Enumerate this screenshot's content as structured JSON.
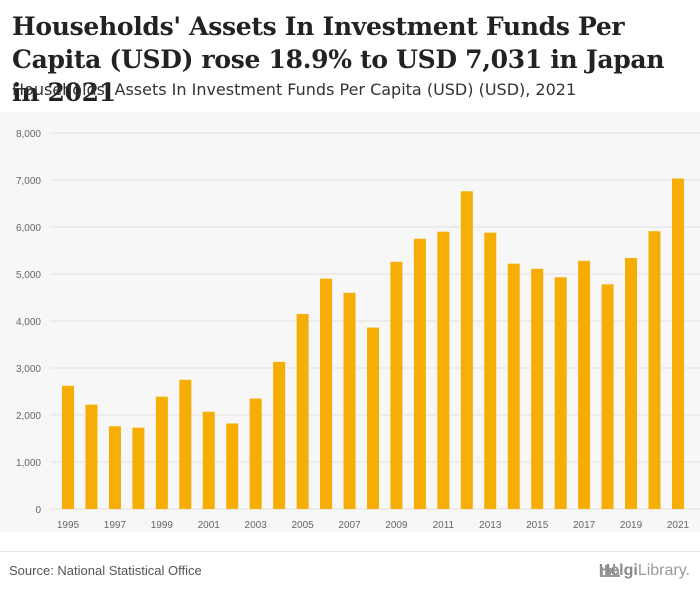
{
  "title": "Households' Assets In Investment Funds Per Capita (USD) rose 18.9% to USD 7,031 in Japan in 2021",
  "subtitle": "Households' Assets In Investment Funds Per Capita (USD) (USD), 2021",
  "source": "Source: National Statistical Office",
  "brand": {
    "name_bold": "Helgi",
    "name_rest": "Library."
  },
  "colors": {
    "bar": "#f6ae05",
    "grid": "#e2e2e2",
    "tick": "#666666",
    "background": "#f7f7f7"
  },
  "chart_data": {
    "type": "bar",
    "title": "Households' Assets In Investment Funds Per Capita (USD) rose 18.9% to USD 7,031 in Japan in 2021",
    "subtitle": "Households' Assets In Investment Funds Per Capita (USD) (USD), 2021",
    "xlabel": "",
    "ylabel": "",
    "ylim": [
      0,
      8000
    ],
    "yticks": [
      0,
      1000,
      2000,
      3000,
      4000,
      5000,
      6000,
      7000,
      8000
    ],
    "ytick_labels": [
      "0",
      "1,000",
      "2,000",
      "3,000",
      "4,000",
      "5,000",
      "6,000",
      "7,000",
      "8,000"
    ],
    "grid": true,
    "categories": [
      "1995",
      "1996",
      "1997",
      "1998",
      "1999",
      "2000",
      "2001",
      "2002",
      "2003",
      "2004",
      "2005",
      "2006",
      "2007",
      "2008",
      "2009",
      "2010",
      "2011",
      "2012",
      "2013",
      "2014",
      "2015",
      "2016",
      "2017",
      "2018",
      "2019",
      "2020",
      "2021"
    ],
    "xtick_labels": [
      "1995",
      "1997",
      "1999",
      "2001",
      "2003",
      "2005",
      "2007",
      "2009",
      "2011",
      "2013",
      "2015",
      "2017",
      "2019",
      "2021"
    ],
    "values": [
      2620,
      2220,
      1760,
      1730,
      2390,
      2750,
      2070,
      1820,
      2350,
      3130,
      4150,
      4900,
      4600,
      3860,
      5260,
      5750,
      5900,
      6760,
      5880,
      5220,
      5110,
      4930,
      5280,
      4780,
      5340,
      5910,
      7031
    ]
  }
}
